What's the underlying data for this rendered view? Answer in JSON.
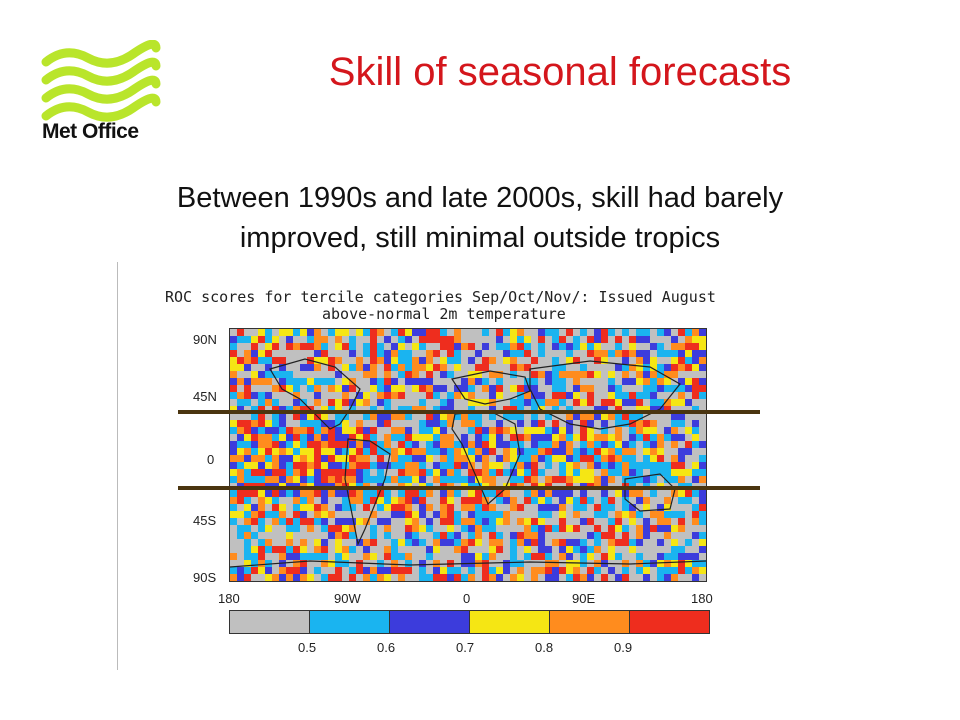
{
  "header": {
    "logo_text": "Met Office",
    "title": "Skill of seasonal forecasts",
    "subtitle_line1": "Between 1990s and late 2000s, skill had barely",
    "subtitle_line2": "improved, still minimal outside tropics"
  },
  "figure": {
    "title_line1": "ROC scores for tercile categories Sep/Oct/Nov/: Issued August",
    "title_line2": "above-normal 2m temperature",
    "lat_labels": [
      "90N",
      "45N",
      "0",
      "45S",
      "90S"
    ],
    "lon_labels": [
      "180",
      "90W",
      "0",
      "90E",
      "180"
    ],
    "colorbar_ticks": [
      "0.5",
      "0.6",
      "0.7",
      "0.8",
      "0.9"
    ],
    "colorbar_colors": [
      "#c0c0c0",
      "#1ab4f0",
      "#3c3cdc",
      "#f5e614",
      "#ff8c1e",
      "#ee2d1e"
    ],
    "band_color": "#4a3510"
  },
  "colors": {
    "title": "#d4161c",
    "logo": "#b5e62a"
  }
}
